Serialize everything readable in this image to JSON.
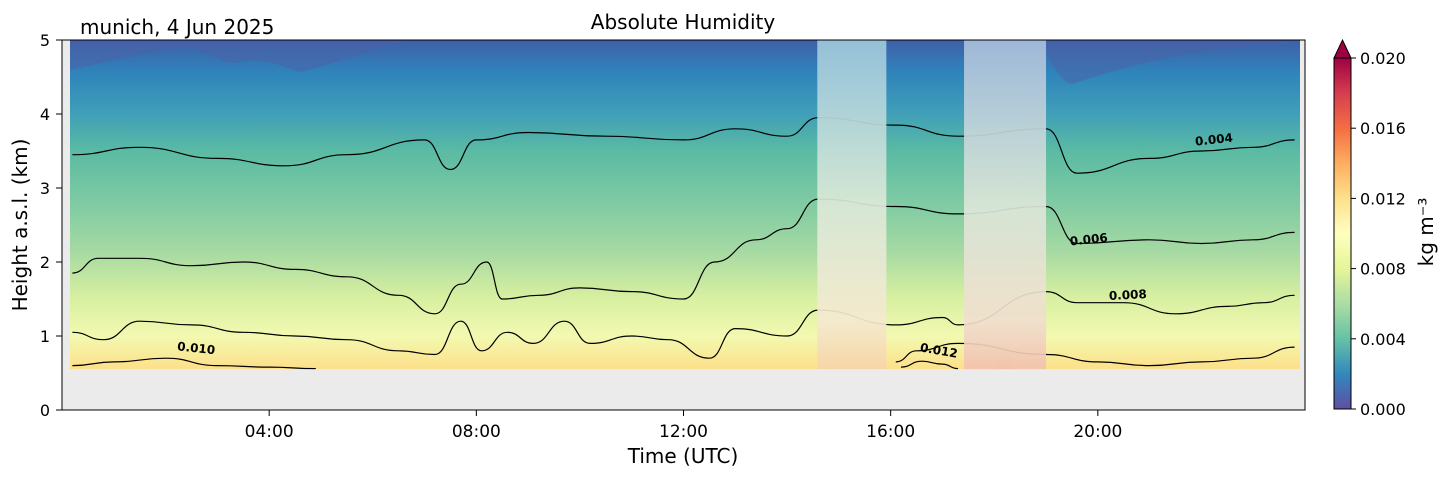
{
  "header": {
    "station_label": "munich, 4 Jun 2025"
  },
  "chart_data": {
    "type": "heatmap",
    "title": "Absolute Humidity",
    "xlabel": "Time (UTC)",
    "ylabel": "Height a.s.l. (km)",
    "xlim": [
      "00:00",
      "24:00"
    ],
    "ylim": [
      0,
      5
    ],
    "x_ticks": [
      "04:00",
      "08:00",
      "12:00",
      "16:00",
      "20:00"
    ],
    "y_ticks": [
      "0",
      "1",
      "2",
      "3",
      "4",
      "5"
    ],
    "colorbar": {
      "label": "kg m⁻³",
      "range": [
        0.0,
        0.02
      ],
      "ticks": [
        "0.000",
        "0.004",
        "0.008",
        "0.012",
        "0.016",
        "0.020"
      ],
      "colormap": "Spectral_r",
      "extend": "max"
    },
    "lowest_valid_height_km": 0.55,
    "masked_time_intervals": [
      [
        "14:35",
        "15:55"
      ],
      [
        "17:25",
        "19:00"
      ]
    ],
    "contour_labels": [
      {
        "text": "0.010",
        "time": "02:35",
        "height_km": 0.78
      },
      {
        "text": "0.012",
        "time": "16:55",
        "height_km": 0.75
      },
      {
        "text": "0.004",
        "time": "22:15",
        "height_km": 3.6
      },
      {
        "text": "0.006",
        "time": "19:50",
        "height_km": 2.25
      },
      {
        "text": "0.008",
        "time": "20:35",
        "height_km": 1.5
      }
    ],
    "contour_lines": [
      {
        "level": "0.004",
        "times": [
          0.2,
          1.5,
          3,
          4.3,
          5.5,
          7,
          7.5,
          8,
          9,
          10.5,
          12,
          13,
          14,
          14.6,
          16.1,
          17.3,
          19,
          19.6,
          21,
          22,
          23,
          23.8
        ],
        "heights_km": [
          3.45,
          3.55,
          3.4,
          3.3,
          3.45,
          3.65,
          3.25,
          3.65,
          3.75,
          3.7,
          3.65,
          3.8,
          3.7,
          3.95,
          3.85,
          3.7,
          3.8,
          3.2,
          3.4,
          3.5,
          3.55,
          3.65
        ]
      },
      {
        "level": "0.006",
        "times": [
          0.2,
          0.7,
          1.5,
          2.5,
          3.5,
          4.5,
          5.5,
          6.5,
          7.2,
          7.7,
          8.2,
          8.5,
          9.2,
          10,
          11,
          12,
          12.6,
          13.4,
          14,
          14.6,
          16.1,
          17.3,
          19,
          19.6,
          21,
          22,
          23,
          23.8
        ],
        "heights_km": [
          1.85,
          2.05,
          2.05,
          1.95,
          2.0,
          1.9,
          1.8,
          1.55,
          1.3,
          1.7,
          2.0,
          1.5,
          1.55,
          1.65,
          1.6,
          1.5,
          2.0,
          2.3,
          2.45,
          2.85,
          2.75,
          2.65,
          2.75,
          2.25,
          2.3,
          2.25,
          2.3,
          2.4
        ]
      },
      {
        "level": "0.008",
        "times": [
          0.2,
          0.8,
          1.5,
          2.5,
          3.5,
          4.5,
          5.5,
          6.5,
          7.2,
          7.7,
          8.1,
          8.6,
          9.1,
          9.7,
          10.2,
          11,
          11.7,
          12.5,
          13,
          14,
          14.6,
          16.1,
          17,
          17.3,
          19,
          19.6,
          20.5,
          21.5,
          22.5,
          23.2,
          23.8
        ],
        "heights_km": [
          1.05,
          0.95,
          1.2,
          1.15,
          1.05,
          1.0,
          0.95,
          0.8,
          0.75,
          1.2,
          0.8,
          1.05,
          0.9,
          1.2,
          0.9,
          1.0,
          0.95,
          0.7,
          1.1,
          1.0,
          1.35,
          1.15,
          1.25,
          1.15,
          1.6,
          1.45,
          1.45,
          1.3,
          1.4,
          1.45,
          1.55
        ]
      },
      {
        "level": "0.010",
        "times": [
          0.2,
          1,
          2,
          3,
          4,
          4.9
        ],
        "heights_km": [
          0.6,
          0.65,
          0.7,
          0.6,
          0.58,
          0.56
        ]
      },
      {
        "level": "0.010",
        "times": [
          16.1,
          16.5,
          17.3,
          19,
          20,
          21,
          22,
          23,
          23.8
        ],
        "heights_km": [
          0.65,
          0.8,
          0.9,
          0.75,
          0.65,
          0.6,
          0.65,
          0.7,
          0.85
        ]
      },
      {
        "level": "0.012",
        "times": [
          16.2,
          16.6,
          17,
          17.3
        ],
        "heights_km": [
          0.58,
          0.66,
          0.62,
          0.56
        ]
      }
    ]
  }
}
